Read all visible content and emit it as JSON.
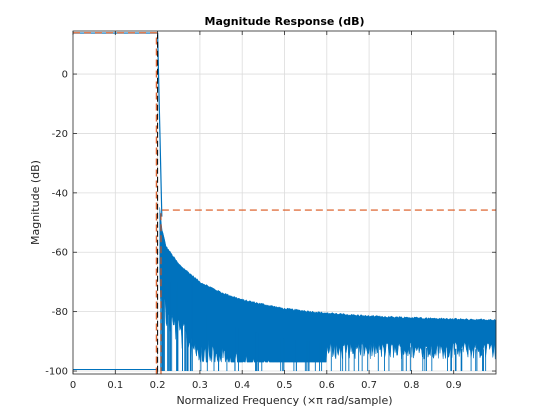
{
  "chart_data": {
    "type": "line",
    "title": "Magnitude Response (dB)",
    "xlabel": "Normalized Frequency (×π rad/sample)",
    "ylabel": "Magnitude (dB)",
    "xlim": [
      0,
      1
    ],
    "ylim": [
      -101,
      14.5
    ],
    "xticks": [
      0,
      0.1,
      0.2,
      0.3,
      0.4,
      0.5,
      0.6,
      0.7,
      0.8,
      0.9
    ],
    "xtick_labels": [
      "0",
      "0.1",
      "0.2",
      "0.3",
      "0.4",
      "0.5",
      "0.6",
      "0.7",
      "0.8",
      "0.9"
    ],
    "yticks": [
      0,
      -20,
      -40,
      -60,
      -80,
      -100
    ],
    "ytick_labels": [
      "0",
      "-20",
      "-40",
      "-60",
      "-80",
      "-100"
    ],
    "grid": true,
    "colors": {
      "response": "#0072BD",
      "mask": "#D95319",
      "mask_secondary": "#000000",
      "grid": "#DCDCDC",
      "axes": "#262626"
    },
    "series": [
      {
        "style": "solid",
        "color": "#0072BD",
        "description_points": {
          "passband": {
            "x": [
              0,
              0.2
            ],
            "y": 13.8
          },
          "transition": {
            "x": [
              0.2,
              0.21
            ],
            "y": [
              13.8,
              -48
            ]
          },
          "upper_envelope": {
            "x": [
              0.205,
              0.21,
              0.22,
              0.25,
              0.3,
              0.35,
              0.4,
              0.45,
              0.5,
              0.6,
              0.7,
              0.8,
              0.9,
              1.0
            ],
            "y": [
              -45,
              -52,
              -58,
              -64,
              -70,
              -73.5,
              -76,
              -77.5,
              -79,
              -80.5,
              -81.5,
              -82,
              -82.5,
              -82.8
            ]
          },
          "floor": -100
        }
      },
      {
        "style": "dashed",
        "color": "#D95319",
        "x": [
          0,
          0.197,
          0.197,
          0.208,
          0.208,
          1.0
        ],
        "y": [
          13.9,
          13.9,
          -101,
          -101,
          -45.8,
          -45.8
        ]
      },
      {
        "style": "dashed",
        "color": "#000000",
        "x": [
          0.2,
          0.2
        ],
        "y": [
          13.9,
          -101
        ]
      }
    ]
  }
}
